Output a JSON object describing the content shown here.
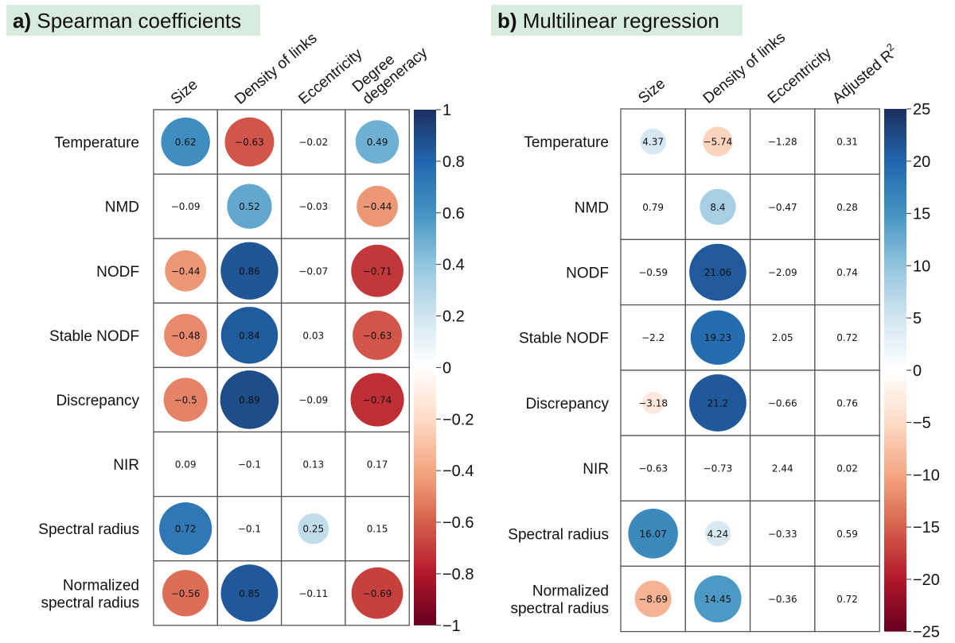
{
  "chart_data": [
    {
      "type": "heatmap",
      "panel_label": "a)",
      "title": "Spearman coefficients",
      "columns": [
        [
          "Size"
        ],
        [
          "Density of links"
        ],
        [
          "Eccentricity"
        ],
        [
          "Degree",
          "degeneracy"
        ]
      ],
      "rows": [
        [
          "Temperature"
        ],
        [
          "NMD"
        ],
        [
          "NODF"
        ],
        [
          "Stable NODF"
        ],
        [
          "Discrepancy"
        ],
        [
          "NIR"
        ],
        [
          "Spectral radius"
        ],
        [
          "Normalized",
          "spectral radius"
        ]
      ],
      "values": [
        [
          0.62,
          -0.63,
          -0.02,
          0.49
        ],
        [
          -0.09,
          0.52,
          -0.03,
          -0.44
        ],
        [
          -0.44,
          0.86,
          -0.07,
          -0.71
        ],
        [
          -0.48,
          0.84,
          0.03,
          -0.63
        ],
        [
          -0.5,
          0.89,
          -0.09,
          -0.74
        ],
        [
          0.09,
          -0.1,
          0.13,
          0.17
        ],
        [
          0.72,
          -0.1,
          0.25,
          0.15
        ],
        [
          -0.56,
          0.85,
          -0.11,
          -0.69
        ]
      ],
      "labels": [
        [
          "0.62",
          "−0.63",
          "−0.02",
          "0.49"
        ],
        [
          "−0.09",
          "0.52",
          "−0.03",
          "−0.44"
        ],
        [
          "−0.44",
          "0.86",
          "−0.07",
          "−0.71"
        ],
        [
          "−0.48",
          "0.84",
          "0.03",
          "−0.63"
        ],
        [
          "−0.5",
          "0.89",
          "−0.09",
          "−0.74"
        ],
        [
          "0.09",
          "−0.1",
          "0.13",
          "0.17"
        ],
        [
          "0.72",
          "−0.1",
          "0.25",
          "0.15"
        ],
        [
          "−0.56",
          "0.85",
          "−0.11",
          "−0.69"
        ]
      ],
      "circle_shown": [
        [
          true,
          true,
          false,
          true
        ],
        [
          false,
          true,
          false,
          true
        ],
        [
          true,
          true,
          false,
          true
        ],
        [
          true,
          true,
          false,
          true
        ],
        [
          true,
          true,
          false,
          true
        ],
        [
          false,
          false,
          false,
          false
        ],
        [
          true,
          false,
          true,
          false
        ],
        [
          true,
          true,
          false,
          true
        ]
      ],
      "scale_range": [
        -1,
        1
      ],
      "colorbar_ticks": [
        "1",
        "0.8",
        "0.6",
        "0.4",
        "0.2",
        "0",
        "−0.2",
        "−0.4",
        "−0.6",
        "−0.8",
        "−1"
      ],
      "colorbar_tick_values": [
        1,
        0.8,
        0.6,
        0.4,
        0.2,
        0,
        -0.2,
        -0.4,
        -0.6,
        -0.8,
        -1
      ]
    },
    {
      "type": "heatmap",
      "panel_label": "b)",
      "title": "Multilinear regression",
      "columns": [
        [
          "Size"
        ],
        [
          "Density of links"
        ],
        [
          "Eccentricity"
        ],
        [
          "Adjusted R²"
        ]
      ],
      "rows": [
        [
          "Temperature"
        ],
        [
          "NMD"
        ],
        [
          "NODF"
        ],
        [
          "Stable NODF"
        ],
        [
          "Discrepancy"
        ],
        [
          "NIR"
        ],
        [
          "Spectral radius"
        ],
        [
          "Normalized",
          "spectral radius"
        ]
      ],
      "values": [
        [
          4.37,
          -5.74,
          -1.28,
          0.31
        ],
        [
          0.79,
          8.4,
          -0.47,
          0.28
        ],
        [
          -0.59,
          21.06,
          -2.09,
          0.74
        ],
        [
          -2.2,
          19.23,
          2.05,
          0.72
        ],
        [
          -3.18,
          21.2,
          -0.66,
          0.76
        ],
        [
          -0.63,
          -0.73,
          2.44,
          0.02
        ],
        [
          16.07,
          4.24,
          -0.33,
          0.59
        ],
        [
          -8.69,
          14.45,
          -0.36,
          0.72
        ]
      ],
      "labels": [
        [
          "4.37",
          "−5.74",
          "−1.28",
          "0.31"
        ],
        [
          "0.79",
          "8.4",
          "−0.47",
          "0.28"
        ],
        [
          "−0.59",
          "21.06",
          "−2.09",
          "0.74"
        ],
        [
          "−2.2",
          "19.23",
          "2.05",
          "0.72"
        ],
        [
          "−3.18",
          "21.2",
          "−0.66",
          "0.76"
        ],
        [
          "−0.63",
          "−0.73",
          "2.44",
          "0.02"
        ],
        [
          "16.07",
          "4.24",
          "−0.33",
          "0.59"
        ],
        [
          "−8.69",
          "14.45",
          "−0.36",
          "0.72"
        ]
      ],
      "circle_shown": [
        [
          true,
          true,
          false,
          false
        ],
        [
          false,
          true,
          false,
          false
        ],
        [
          false,
          true,
          false,
          false
        ],
        [
          false,
          true,
          false,
          false
        ],
        [
          true,
          true,
          false,
          false
        ],
        [
          false,
          false,
          false,
          false
        ],
        [
          true,
          true,
          false,
          false
        ],
        [
          true,
          true,
          false,
          false
        ]
      ],
      "scale_range": [
        -25,
        25
      ],
      "colorbar_ticks": [
        "25",
        "20",
        "15",
        "10",
        "5",
        "0",
        "−5",
        "−10",
        "−15",
        "−20",
        "−25"
      ],
      "colorbar_tick_values": [
        25,
        20,
        15,
        10,
        5,
        0,
        -5,
        -10,
        -15,
        -20,
        -25
      ]
    }
  ],
  "colors": {
    "title_bg": "#d8ebdf",
    "scale": [
      "#67001f",
      "#b2182b",
      "#d6604d",
      "#f4a582",
      "#fddbc7",
      "#ffffff",
      "#d1e5f0",
      "#92c5de",
      "#4393c3",
      "#2166ac",
      "#1c2f5e"
    ]
  }
}
